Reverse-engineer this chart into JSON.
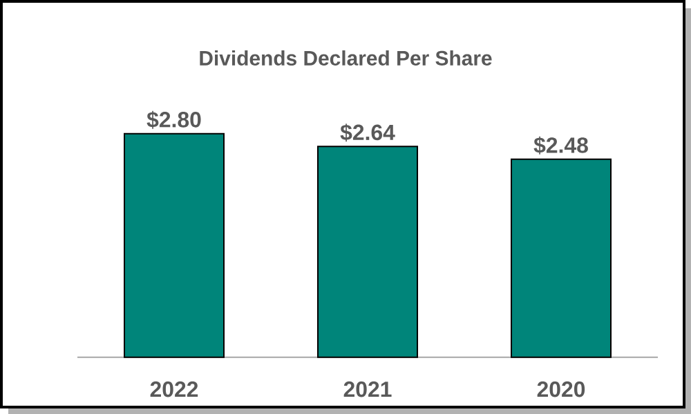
{
  "chart_data": {
    "type": "bar",
    "title": "Dividends Declared Per Share",
    "categories": [
      "2022",
      "2021",
      "2020"
    ],
    "values": [
      2.8,
      2.64,
      2.48
    ],
    "value_labels": [
      "$2.80",
      "$2.64",
      "$2.48"
    ],
    "color": "#00857a",
    "tick_labels": "x",
    "grid": false
  }
}
